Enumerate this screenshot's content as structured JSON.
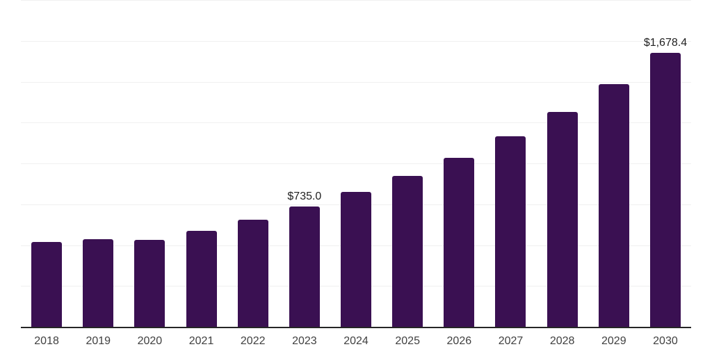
{
  "chart_data": {
    "type": "bar",
    "title": "",
    "xlabel": "",
    "ylabel": "",
    "categories": [
      "2018",
      "2019",
      "2020",
      "2021",
      "2022",
      "2023",
      "2024",
      "2025",
      "2026",
      "2027",
      "2028",
      "2029",
      "2030"
    ],
    "values": [
      520,
      537,
      531,
      589,
      655,
      735.0,
      825,
      922,
      1034,
      1166,
      1315,
      1485,
      1678.4
    ],
    "point_labels": [
      "",
      "",
      "",
      "",
      "",
      "$735.0",
      "",
      "",
      "",
      "",
      "",
      "",
      "$1,678.4"
    ],
    "ylim": [
      0,
      2000
    ],
    "gridline_step": 250,
    "grid": "horizontal-only",
    "legend": "none",
    "y_axis_labels_visible": false,
    "colors": {
      "bar": "#3a1052",
      "gridline": "#f0f0f0",
      "axis": "#262626",
      "tick_label": "#404040",
      "data_label": "#1f1f1f",
      "background": "#ffffff"
    }
  }
}
